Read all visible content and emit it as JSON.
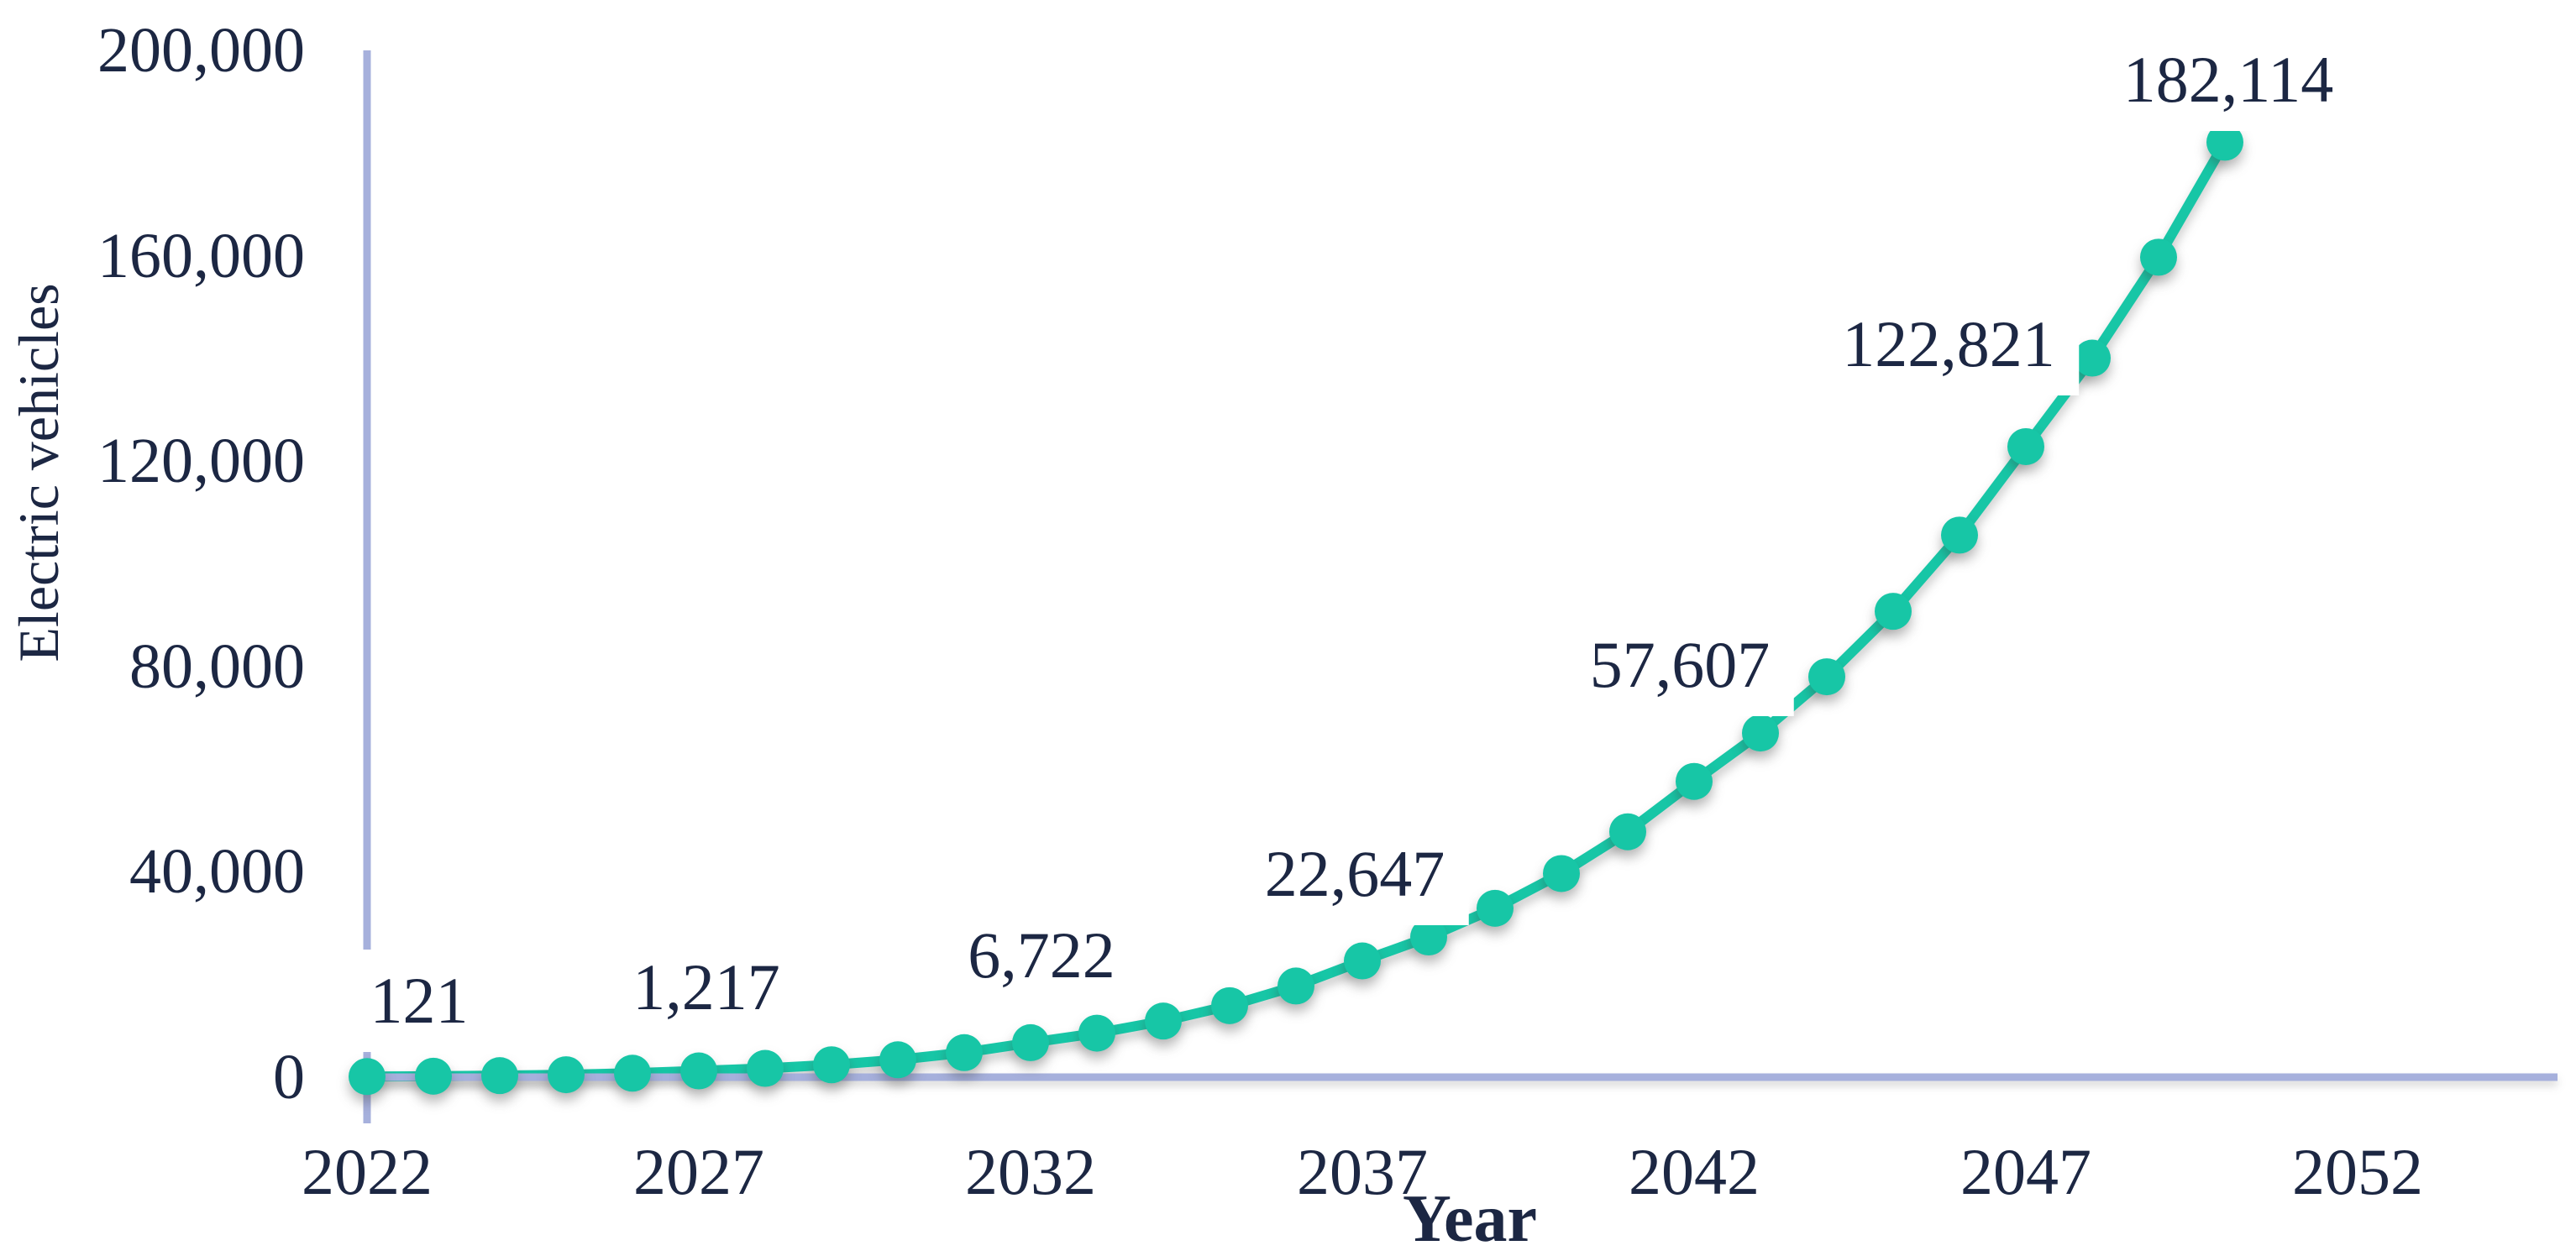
{
  "chart_data": {
    "type": "line",
    "title": "",
    "xlabel": "Year",
    "ylabel": "Electric vehicles",
    "x": [
      2022,
      2023,
      2024,
      2025,
      2026,
      2027,
      2028,
      2029,
      2030,
      2031,
      2032,
      2033,
      2034,
      2035,
      2036,
      2037,
      2038,
      2039,
      2040,
      2041,
      2042,
      2043,
      2044,
      2045,
      2046,
      2047,
      2048,
      2049,
      2050
    ],
    "values": [
      121,
      190,
      300,
      480,
      770,
      1217,
      1710,
      2410,
      3390,
      4780,
      6722,
      8570,
      10930,
      13930,
      17760,
      22647,
      27300,
      32900,
      39660,
      47800,
      57607,
      67030,
      77990,
      90740,
      105580,
      122821,
      140060,
      159710,
      182114
    ],
    "labeled_points": [
      {
        "year": 2022,
        "label": "121"
      },
      {
        "year": 2027,
        "label": "1,217"
      },
      {
        "year": 2032,
        "label": "6,722"
      },
      {
        "year": 2037,
        "label": "22,647"
      },
      {
        "year": 2042,
        "label": "57,607"
      },
      {
        "year": 2047,
        "label": "122,821"
      },
      {
        "year": 2050,
        "label": "182,114"
      }
    ],
    "xlim": [
      2022,
      2052
    ],
    "ylim": [
      0,
      200000
    ],
    "grid": false,
    "legend": "none",
    "marker": "circle",
    "line_color": "#17C6A6",
    "axis_color": "#A6B0DC",
    "text_color": "#1C2743"
  },
  "y_axis": {
    "title": "Electric vehicles",
    "ticks": [
      {
        "value": 200000,
        "label": "200,000"
      },
      {
        "value": 160000,
        "label": "160,000"
      },
      {
        "value": 120000,
        "label": "120,000"
      },
      {
        "value": 80000,
        "label": "80,000"
      },
      {
        "value": 40000,
        "label": "40,000"
      },
      {
        "value": 0,
        "label": "0"
      }
    ]
  },
  "x_axis": {
    "title": "Year",
    "ticks": [
      {
        "value": 2022,
        "label": "2022"
      },
      {
        "value": 2027,
        "label": "2027"
      },
      {
        "value": 2032,
        "label": "2032"
      },
      {
        "value": 2037,
        "label": "2037"
      },
      {
        "value": 2042,
        "label": "2042"
      },
      {
        "value": 2047,
        "label": "2047"
      },
      {
        "value": 2052,
        "label": "2052"
      }
    ]
  }
}
